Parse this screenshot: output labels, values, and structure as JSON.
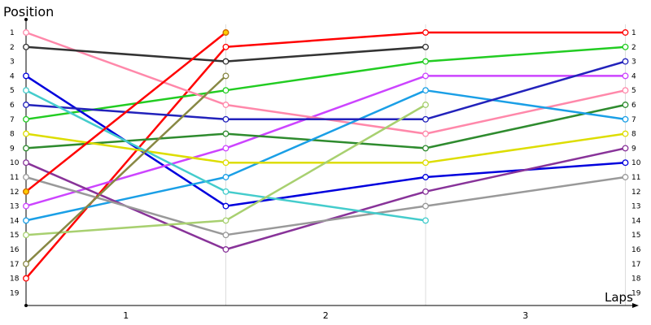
{
  "chart_data": {
    "type": "line",
    "title": "",
    "ylabel": "Position",
    "xlabel": "Laps",
    "x_ticks": [
      "1",
      "2",
      "3"
    ],
    "y_ticks": [
      "1",
      "2",
      "3",
      "4",
      "5",
      "6",
      "7",
      "8",
      "9",
      "10",
      "11",
      "12",
      "13",
      "14",
      "15",
      "16",
      "17",
      "18",
      "19"
    ],
    "ylim": [
      1,
      19
    ],
    "y_inverted": true,
    "grid": "vertical",
    "x": [
      0,
      1,
      2,
      3
    ],
    "series": [
      {
        "color": "#ff0000",
        "values": [
          18,
          2,
          1,
          1
        ]
      },
      {
        "color": "#22cc22",
        "values": [
          7,
          5,
          3,
          2
        ]
      },
      {
        "color": "#0000dd",
        "values": [
          4,
          13,
          11,
          10
        ]
      },
      {
        "color": "#cc44ff",
        "values": [
          13,
          9,
          4,
          4
        ]
      },
      {
        "color": "#ff88aa",
        "values": [
          1,
          6,
          8,
          5
        ]
      },
      {
        "color": "#2e8b2e",
        "values": [
          9,
          8,
          9,
          6
        ]
      },
      {
        "color": "#1a9fe6",
        "values": [
          14,
          11,
          5,
          7
        ]
      },
      {
        "color": "#dddd00",
        "values": [
          8,
          10,
          10,
          8
        ]
      },
      {
        "color": "#883399",
        "values": [
          10,
          16,
          12,
          9
        ]
      },
      {
        "color": "#2222bb",
        "values": [
          6,
          7,
          7,
          3
        ]
      },
      {
        "color": "#999999",
        "values": [
          11,
          15,
          13,
          11
        ]
      },
      {
        "color": "#333333",
        "values": [
          2,
          3,
          2,
          null
        ]
      },
      {
        "color": "#44cccc",
        "values": [
          5,
          12,
          14,
          null
        ]
      },
      {
        "color": "#a8d070",
        "values": [
          15,
          14,
          6,
          null
        ]
      },
      {
        "color": "#ffcc00",
        "line_color": "#ff0000",
        "values": [
          12,
          1,
          null,
          null
        ]
      },
      {
        "color": "#888844",
        "values": [
          17,
          4,
          null,
          null
        ]
      }
    ]
  }
}
